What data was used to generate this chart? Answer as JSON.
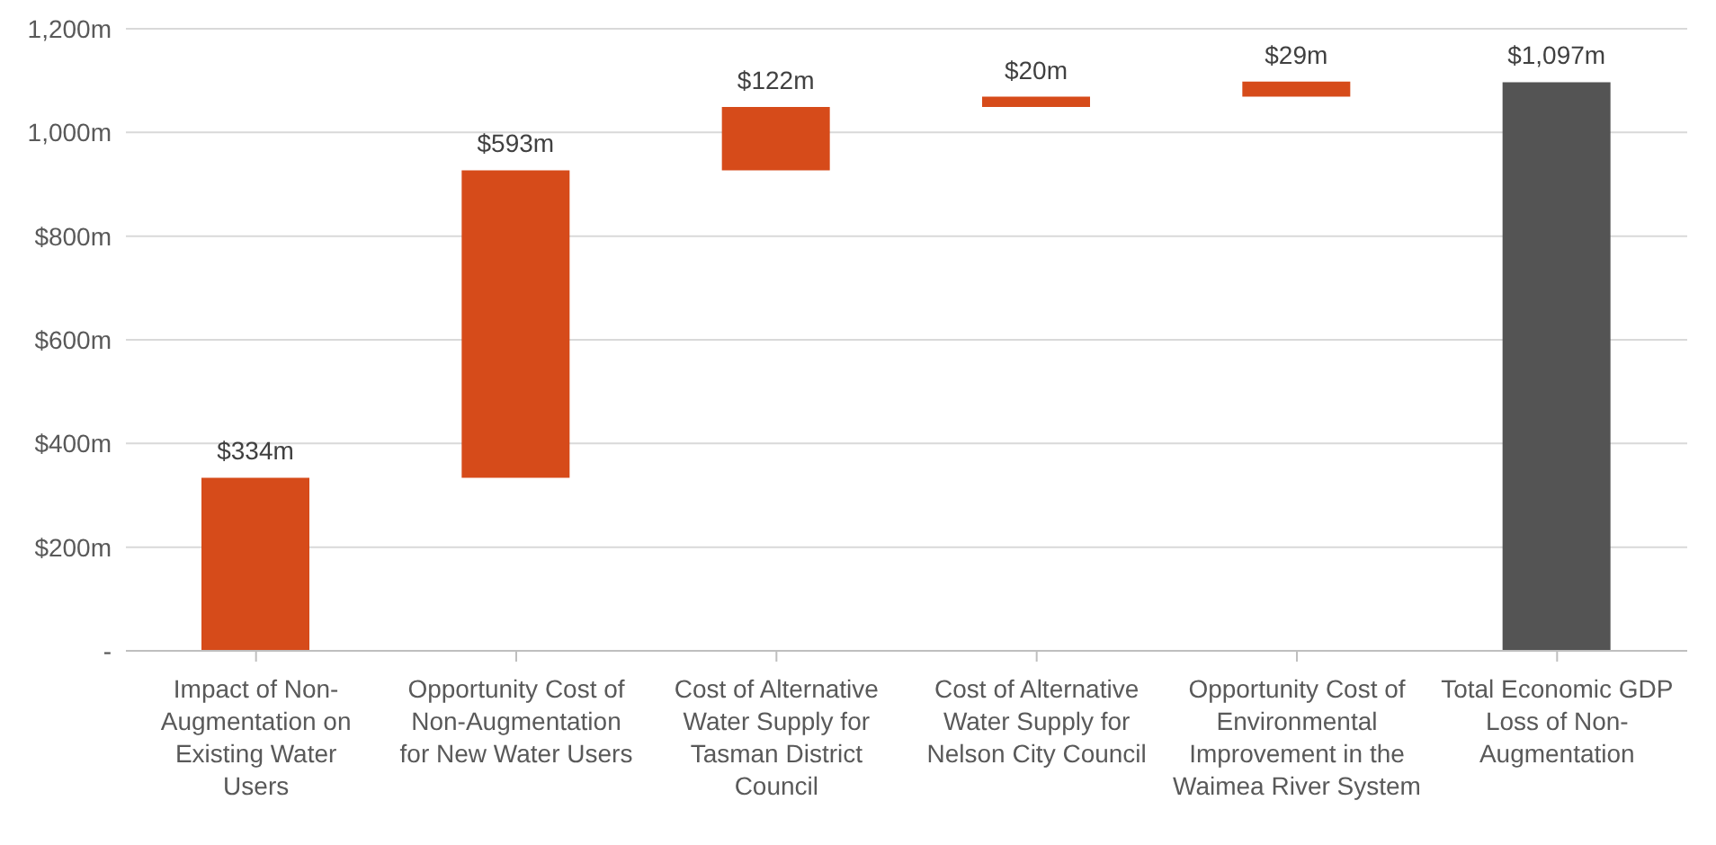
{
  "chart_data": {
    "type": "bar",
    "categories": [
      "Impact of Non-Augmentation on Existing Water Users",
      "Opportunity Cost of Non-Augmentation for New Water Users",
      "Cost of Alternative Water Supply for Tasman District Council",
      "Cost of Alternative Water Supply for Nelson City Council",
      "Opportunity Cost of Environmental Improvement in the Waimea River System",
      "Total Economic GDP Loss of Non-Augmentation"
    ],
    "values": [
      334,
      593,
      122,
      20,
      29,
      1097
    ],
    "base": [
      0,
      334,
      927,
      1049,
      1069,
      0
    ],
    "colors": [
      "#d64b1a",
      "#d64b1a",
      "#d64b1a",
      "#d64b1a",
      "#d64b1a",
      "#545454"
    ],
    "value_labels": [
      "$334m",
      "$593m",
      "$122m",
      "$20m",
      "$29m",
      "$1,097m"
    ],
    "ylim": [
      0,
      1200
    ],
    "yticks": [
      {
        "value": 0,
        "label": "-"
      },
      {
        "value": 200,
        "label": "$200m"
      },
      {
        "value": 400,
        "label": "$400m"
      },
      {
        "value": 600,
        "label": "$600m"
      },
      {
        "value": 800,
        "label": "$800m"
      },
      {
        "value": 1000,
        "label": "1,000m"
      },
      {
        "value": 1200,
        "label": "1,200m"
      }
    ],
    "grid": "y"
  }
}
